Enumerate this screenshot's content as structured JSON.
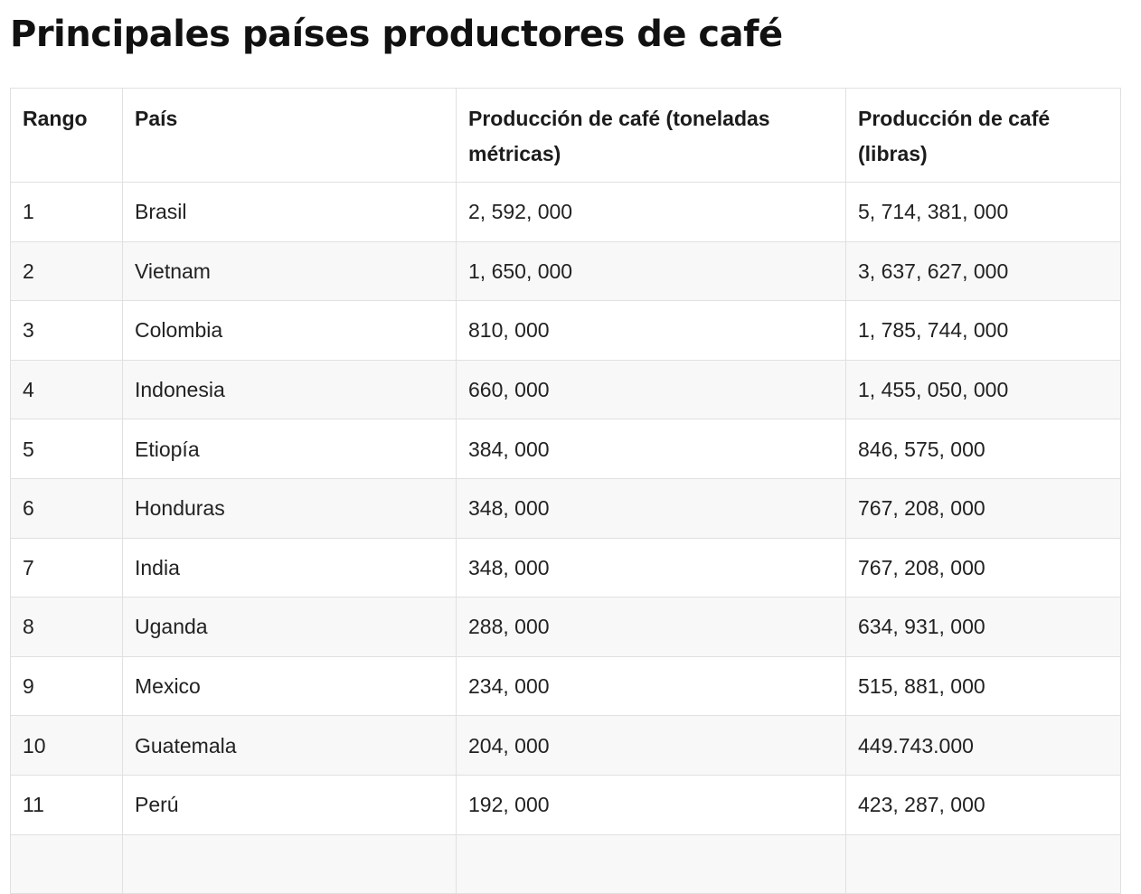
{
  "page": {
    "title": "Principales países productores de café"
  },
  "table": {
    "headers": {
      "rank": "Rango",
      "country": "País",
      "tons": "Producción de café (toneladas métricas)",
      "pounds": "Producción de café (libras)"
    },
    "rows": [
      {
        "rank": "1",
        "country": "Brasil",
        "tons": "2, 592, 000",
        "pounds": "5, 714, 381, 000"
      },
      {
        "rank": "2",
        "country": "Vietnam",
        "tons": "1, 650, 000",
        "pounds": "3, 637, 627, 000"
      },
      {
        "rank": "3",
        "country": "Colombia",
        "tons": "810, 000",
        "pounds": "1, 785, 744, 000"
      },
      {
        "rank": "4",
        "country": "Indonesia",
        "tons": "660, 000",
        "pounds": "1, 455, 050, 000"
      },
      {
        "rank": "5",
        "country": "Etiopía",
        "tons": "384, 000",
        "pounds": "846, 575, 000"
      },
      {
        "rank": "6",
        "country": "Honduras",
        "tons": "348, 000",
        "pounds": "767, 208, 000"
      },
      {
        "rank": "7",
        "country": "India",
        "tons": "348, 000",
        "pounds": "767, 208, 000"
      },
      {
        "rank": "8",
        "country": "Uganda",
        "tons": "288, 000",
        "pounds": "634, 931, 000"
      },
      {
        "rank": "9",
        "country": "Mexico",
        "tons": "234, 000",
        "pounds": "515, 881, 000"
      },
      {
        "rank": "10",
        "country": "Guatemala",
        "tons": "204, 000",
        "pounds": "449.743.000"
      },
      {
        "rank": "11",
        "country": "Perú",
        "tons": "192, 000",
        "pounds": "423, 287, 000"
      },
      {
        "rank": "",
        "country": "",
        "tons": "",
        "pounds": ""
      }
    ]
  }
}
